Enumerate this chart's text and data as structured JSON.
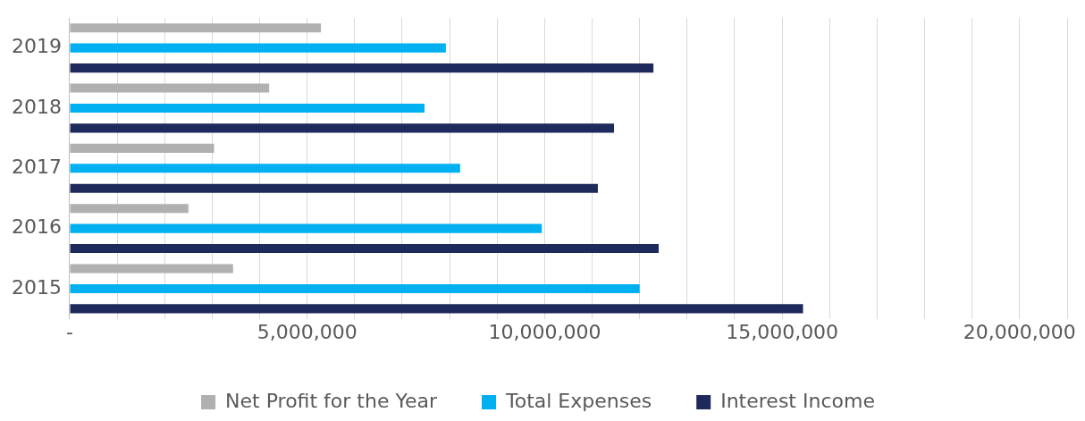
{
  "chart_data": {
    "type": "bar",
    "orientation": "horizontal",
    "categories": [
      "2019",
      "2018",
      "2017",
      "2016",
      "2015"
    ],
    "series": [
      {
        "name": "Net Profit for the Year",
        "color": "#b0b0b0",
        "values": [
          5290000,
          4200000,
          3040000,
          2500000,
          3440000
        ]
      },
      {
        "name": "Total Expenses",
        "color": "#00b0f0",
        "values": [
          7920000,
          7470000,
          8220000,
          9940000,
          12000000
        ]
      },
      {
        "name": "Interest Income",
        "color": "#1f2a5c",
        "values": [
          12290000,
          11460000,
          11120000,
          12400000,
          15440000
        ]
      }
    ],
    "xlim": [
      0,
      21000000
    ],
    "xticks": [
      {
        "value": 0,
        "label": "-"
      },
      {
        "value": 1000000,
        "label": null
      },
      {
        "value": 2000000,
        "label": null
      },
      {
        "value": 3000000,
        "label": null
      },
      {
        "value": 4000000,
        "label": null
      },
      {
        "value": 5000000,
        "label": "5,000,000"
      },
      {
        "value": 6000000,
        "label": null
      },
      {
        "value": 7000000,
        "label": null
      },
      {
        "value": 8000000,
        "label": null
      },
      {
        "value": 9000000,
        "label": null
      },
      {
        "value": 10000000,
        "label": "10,000,000"
      },
      {
        "value": 11000000,
        "label": null
      },
      {
        "value": 12000000,
        "label": null
      },
      {
        "value": 13000000,
        "label": null
      },
      {
        "value": 14000000,
        "label": null
      },
      {
        "value": 15000000,
        "label": "15,000,000"
      },
      {
        "value": 16000000,
        "label": null
      },
      {
        "value": 17000000,
        "label": null
      },
      {
        "value": 18000000,
        "label": null
      },
      {
        "value": 19000000,
        "label": null
      },
      {
        "value": 20000000,
        "label": "20,000,000"
      },
      {
        "value": 21000000,
        "label": null
      }
    ],
    "grid": "x",
    "legend": "bottom"
  }
}
